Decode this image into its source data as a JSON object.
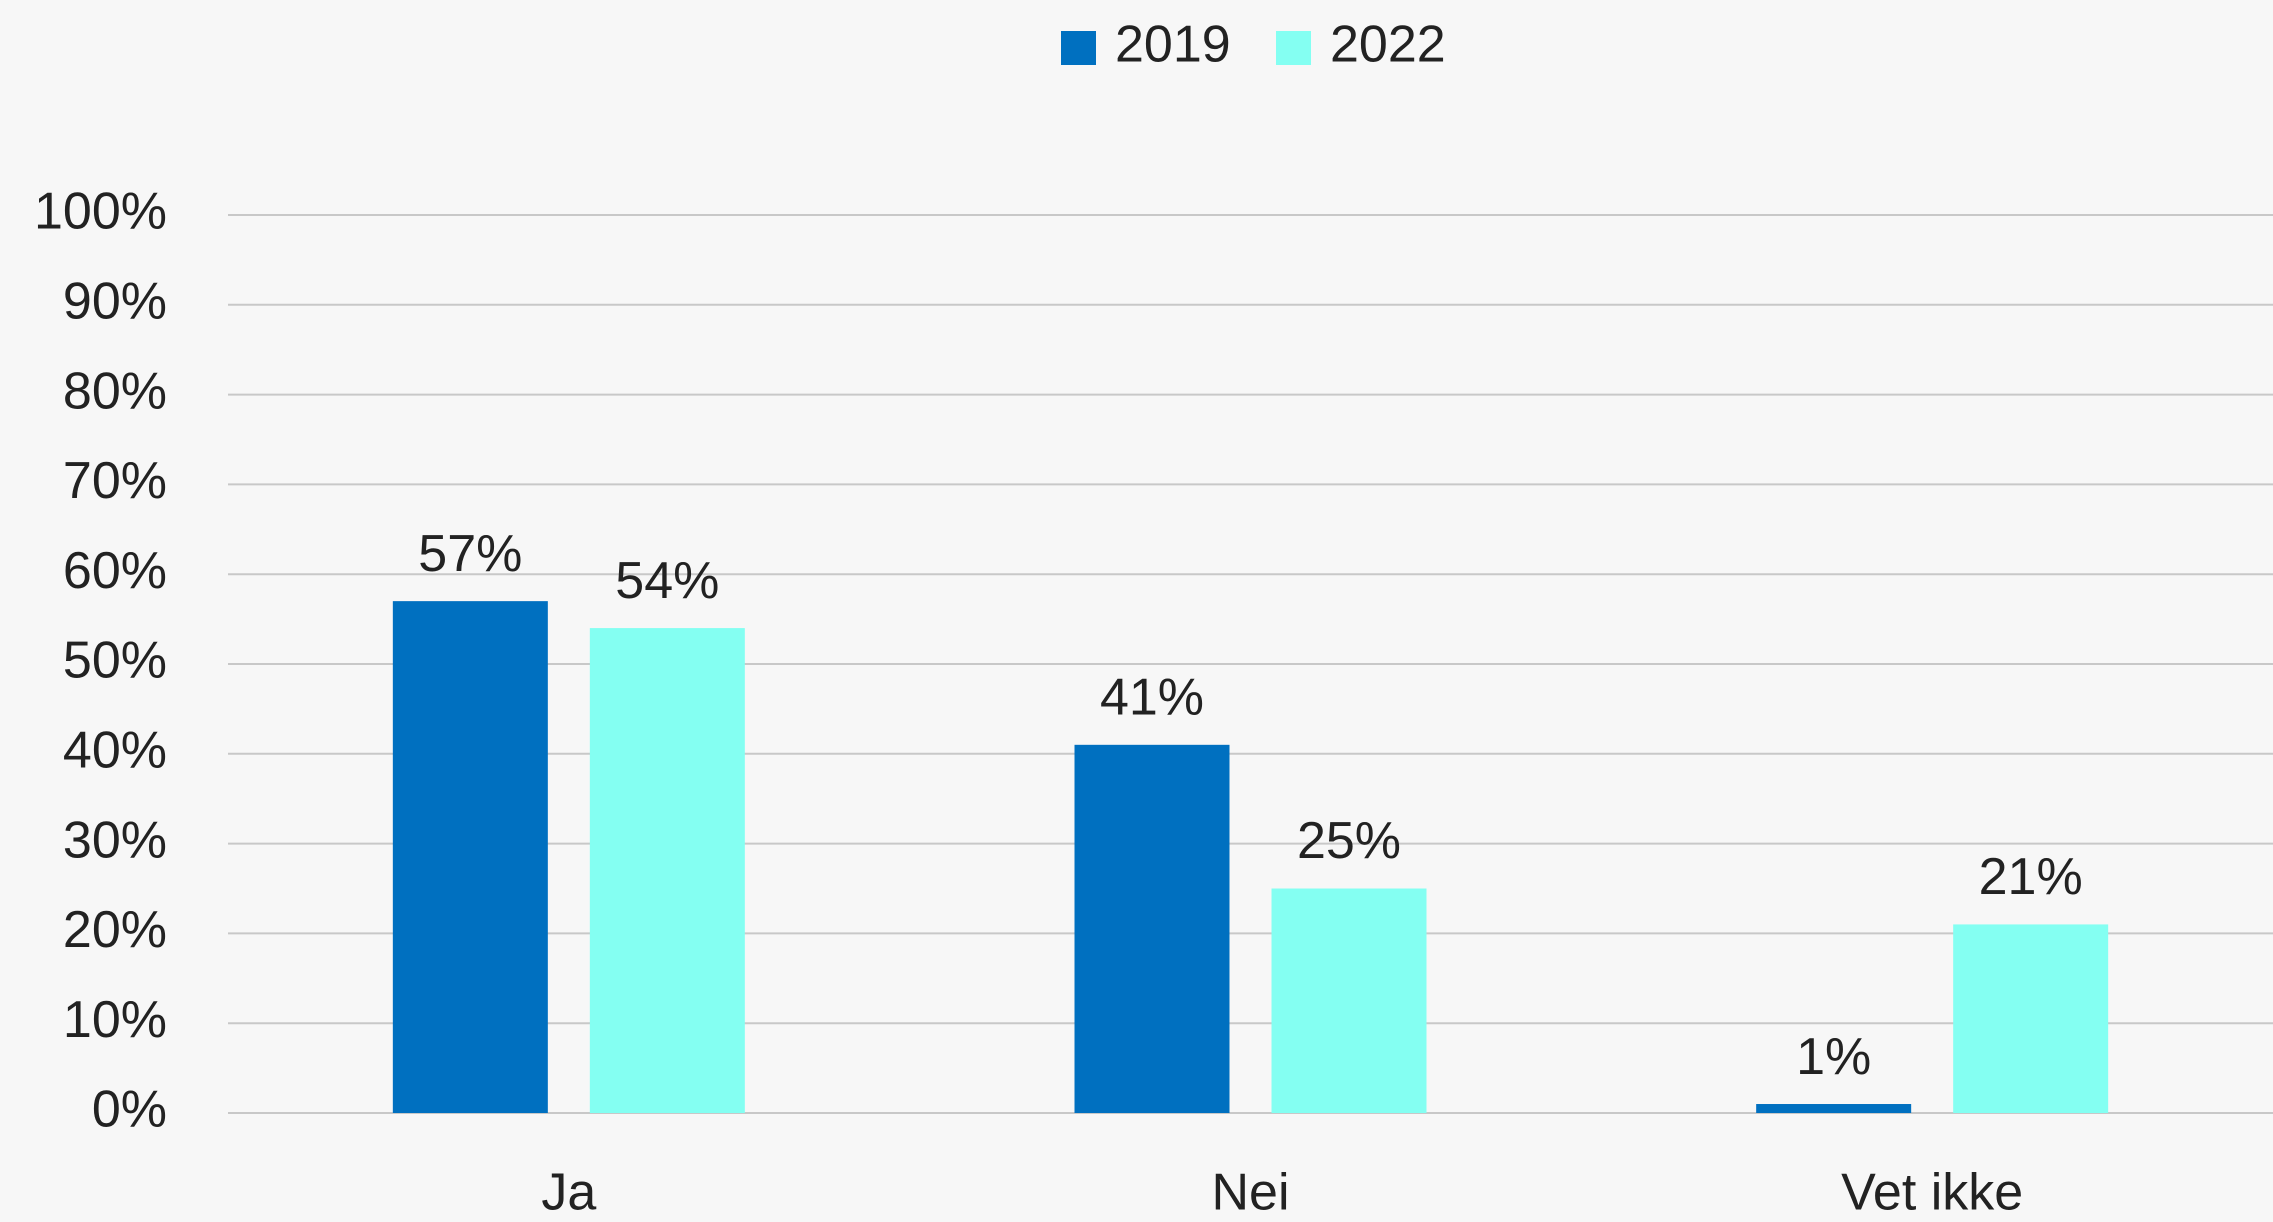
{
  "chart_data": {
    "type": "bar",
    "categories": [
      "Ja",
      "Nei",
      "Vet ikke"
    ],
    "series": [
      {
        "name": "2019",
        "color": "#0070c0",
        "values": [
          57,
          41,
          1
        ],
        "value_labels": [
          "57%",
          "41%",
          "1%"
        ]
      },
      {
        "name": "2022",
        "color": "#84fff2",
        "values": [
          54,
          25,
          21
        ],
        "value_labels": [
          "54%",
          "25%",
          "21%"
        ]
      }
    ],
    "ylim": [
      0,
      100
    ],
    "yticks": [
      {
        "value": 0,
        "label": "0%"
      },
      {
        "value": 10,
        "label": "10%"
      },
      {
        "value": 20,
        "label": "20%"
      },
      {
        "value": 30,
        "label": "30%"
      },
      {
        "value": 40,
        "label": "40%"
      },
      {
        "value": 50,
        "label": "50%"
      },
      {
        "value": 60,
        "label": "60%"
      },
      {
        "value": 70,
        "label": "70%"
      },
      {
        "value": 80,
        "label": "80%"
      },
      {
        "value": 90,
        "label": "90%"
      },
      {
        "value": 100,
        "label": "100%"
      }
    ],
    "grid": true,
    "legend": "top"
  }
}
